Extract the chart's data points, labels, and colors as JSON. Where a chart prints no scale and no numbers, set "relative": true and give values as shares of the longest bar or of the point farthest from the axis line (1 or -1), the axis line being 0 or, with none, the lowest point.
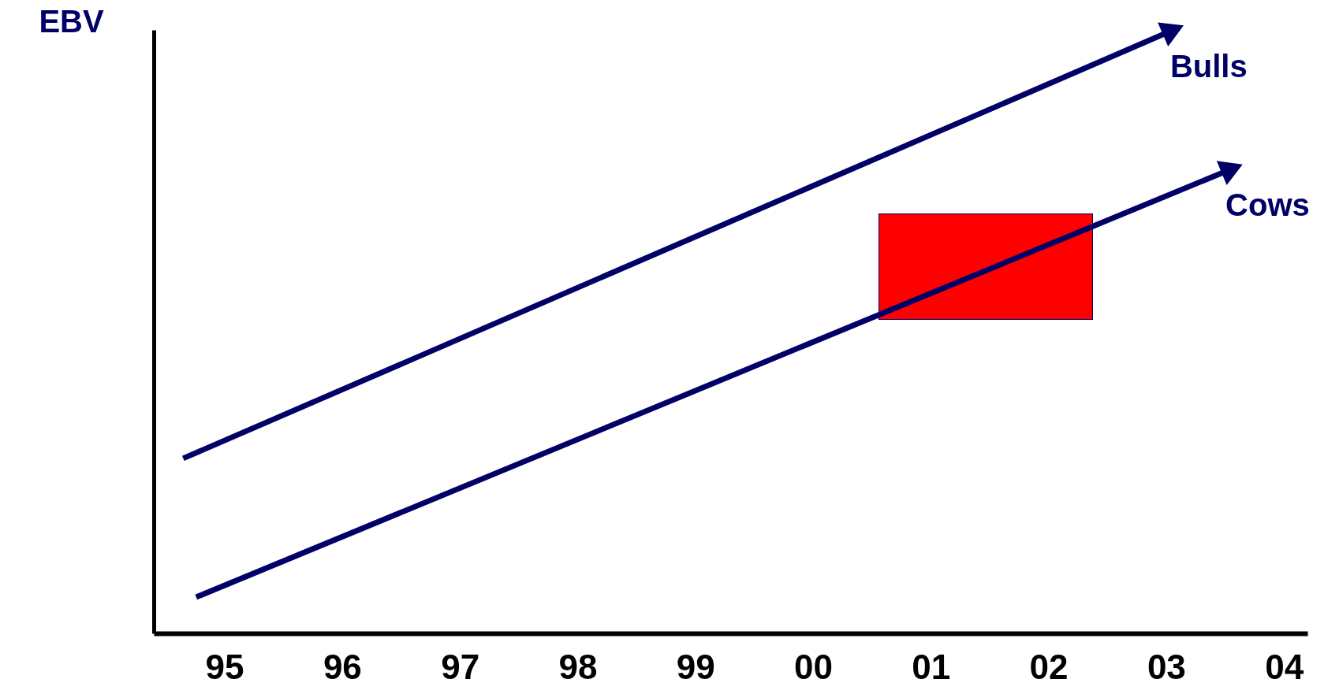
{
  "chart_data": {
    "type": "line",
    "ylabel": "EBV",
    "relative": true,
    "xlim": [
      1994.4,
      2004.2
    ],
    "xticks": [
      {
        "value": 1995,
        "label": "95"
      },
      {
        "value": 1996,
        "label": "96"
      },
      {
        "value": 1997,
        "label": "97"
      },
      {
        "value": 1998,
        "label": "98"
      },
      {
        "value": 1999,
        "label": "99"
      },
      {
        "value": 2000,
        "label": "00"
      },
      {
        "value": 2001,
        "label": "01"
      },
      {
        "value": 2002,
        "label": "02"
      },
      {
        "value": 2003,
        "label": "03"
      },
      {
        "value": 2004,
        "label": "04"
      }
    ],
    "series": [
      {
        "name": "Bulls",
        "color": "#000066",
        "x": [
          1994.65,
          2003.06
        ],
        "values": [
          0.29,
          1
        ]
      },
      {
        "name": "Cows",
        "color": "#000066",
        "x": [
          1994.76,
          2003.56
        ],
        "values": [
          0.06,
          0.77
        ]
      }
    ]
  }
}
